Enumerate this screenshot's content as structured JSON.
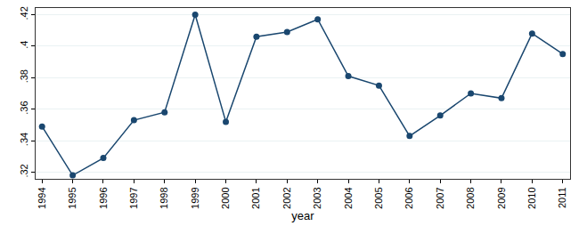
{
  "chart_data": {
    "type": "line",
    "x": [
      1994,
      1995,
      1996,
      1997,
      1998,
      1999,
      2000,
      2001,
      2002,
      2003,
      2004,
      2005,
      2006,
      2007,
      2008,
      2009,
      2010,
      2011
    ],
    "values": [
      0.349,
      0.318,
      0.329,
      0.353,
      0.358,
      0.42,
      0.352,
      0.406,
      0.409,
      0.417,
      0.381,
      0.375,
      0.343,
      0.356,
      0.37,
      0.367,
      0.408,
      0.395
    ],
    "color": "#1a476f",
    "marker": "circle",
    "x_label": "year",
    "xlim": [
      1993.79,
      2011.24
    ],
    "xticks": [
      1994,
      1995,
      1996,
      1997,
      1998,
      1999,
      2000,
      2001,
      2002,
      2003,
      2004,
      2005,
      2006,
      2007,
      2008,
      2009,
      2010,
      2011
    ],
    "ylim": [
      0.3158,
      0.4242
    ],
    "yticks": [
      {
        "value": 0.32,
        "label": ".32"
      },
      {
        "value": 0.34,
        "label": ".34"
      },
      {
        "value": 0.36,
        "label": ".36"
      },
      {
        "value": 0.38,
        "label": ".38"
      },
      {
        "value": 0.4,
        "label": ".4"
      },
      {
        "value": 0.42,
        "label": ".42"
      }
    ],
    "grid": true
  }
}
